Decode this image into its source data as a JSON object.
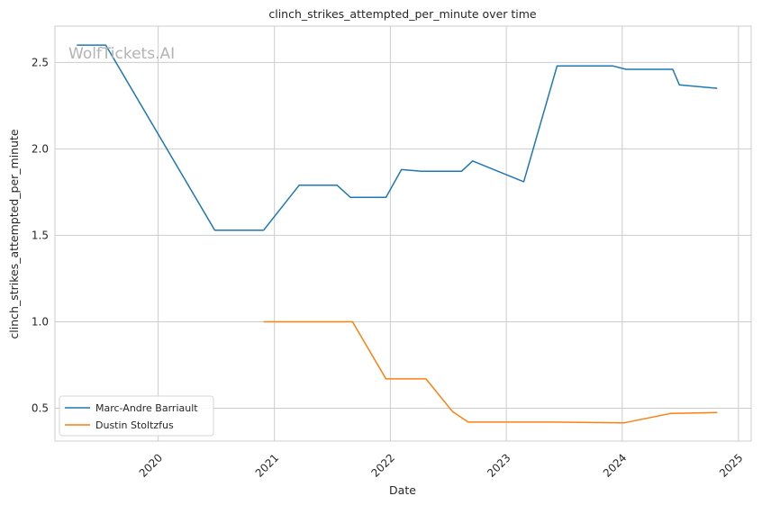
{
  "chart_data": {
    "type": "line",
    "title": "clinch_strikes_attempted_per_minute over time",
    "xlabel": "Date",
    "ylabel": "clinch_strikes_attempted_per_minute",
    "watermark": "WolfTickets.AI",
    "x_ticks": [
      "2020",
      "2021",
      "2022",
      "2023",
      "2024",
      "2025"
    ],
    "y_ticks": [
      "0.5",
      "1.0",
      "1.5",
      "2.0",
      "2.5"
    ],
    "xlim": [
      "2019-02-10",
      "2025-02-10"
    ],
    "ylim": [
      0.31,
      2.71
    ],
    "grid": true,
    "legend_position": "lower-left",
    "series": [
      {
        "name": "Marc-Andre Barriault",
        "color": "#1f77b4",
        "points": [
          [
            "2019-04-20",
            2.6
          ],
          [
            "2019-07-20",
            2.6
          ],
          [
            "2020-06-27",
            1.53
          ],
          [
            "2020-11-28",
            1.53
          ],
          [
            "2021-03-20",
            1.79
          ],
          [
            "2021-07-17",
            1.79
          ],
          [
            "2021-08-28",
            1.72
          ],
          [
            "2021-12-18",
            1.72
          ],
          [
            "2022-02-05",
            1.88
          ],
          [
            "2022-04-09",
            1.87
          ],
          [
            "2022-08-13",
            1.87
          ],
          [
            "2022-09-17",
            1.93
          ],
          [
            "2023-02-25",
            1.81
          ],
          [
            "2023-06-10",
            2.48
          ],
          [
            "2023-12-02",
            2.48
          ],
          [
            "2024-01-13",
            2.46
          ],
          [
            "2024-06-08",
            2.46
          ],
          [
            "2024-06-29",
            2.37
          ],
          [
            "2024-10-26",
            2.35
          ]
        ]
      },
      {
        "name": "Dustin Stoltzfus",
        "color": "#ff7f0e",
        "points": [
          [
            "2020-11-28",
            1.0
          ],
          [
            "2021-09-04",
            1.0
          ],
          [
            "2021-12-18",
            0.67
          ],
          [
            "2022-04-23",
            0.67
          ],
          [
            "2022-07-16",
            0.48
          ],
          [
            "2022-09-03",
            0.42
          ],
          [
            "2023-06-03",
            0.42
          ],
          [
            "2024-01-06",
            0.415
          ],
          [
            "2024-06-01",
            0.47
          ],
          [
            "2024-10-26",
            0.475
          ]
        ]
      }
    ]
  }
}
